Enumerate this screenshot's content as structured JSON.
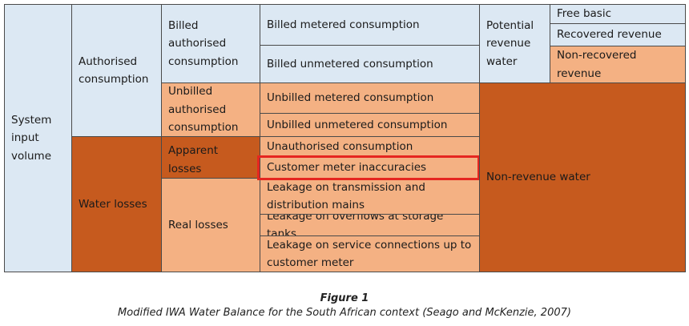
{
  "colors": {
    "input_volume": "#dce8f3",
    "billed": "#dce8f3",
    "unbilled": "#f4b183",
    "losses": "#c65a1e",
    "highlight_border": "#e52620"
  },
  "columns": {
    "system_input": "System\ninput\nvolume",
    "authorised": "Authorised\nconsumption",
    "water_losses": "Water losses",
    "billed_authorised": "Billed\nauthorised\nconsumption",
    "unbilled_authorised": "Unbilled\nauthorised\nconsumption",
    "apparent_losses": "Apparent losses",
    "real_losses": "Real losses"
  },
  "components": {
    "billed_metered": "Billed metered consumption",
    "billed_unmetered": "Billed unmetered consumption",
    "unbilled_metered": "Unbilled metered consumption",
    "unbilled_unmetered": "Unbilled unmetered consumption",
    "unauthorised": "Unauthorised consumption",
    "meter_inaccuracies": "Customer meter inaccuracies",
    "leakage_transmission": "Leakage on transmission and\ndistribution mains",
    "leakage_overflows": "Leakage on overflows at storage tanks",
    "leakage_service": "Leakage on service connections up to\ncustomer meter"
  },
  "revenue": {
    "potential": "Potential\nrevenue\nwater",
    "free_basic": "Free basic",
    "recovered": "Recovered revenue",
    "non_recovered": "Non-recovered\nrevenue",
    "non_revenue": "Non-revenue water"
  },
  "figure": {
    "label": "Figure 1",
    "caption": "Modified IWA Water Balance for the South African context (Seago and McKenzie, 2007)"
  }
}
